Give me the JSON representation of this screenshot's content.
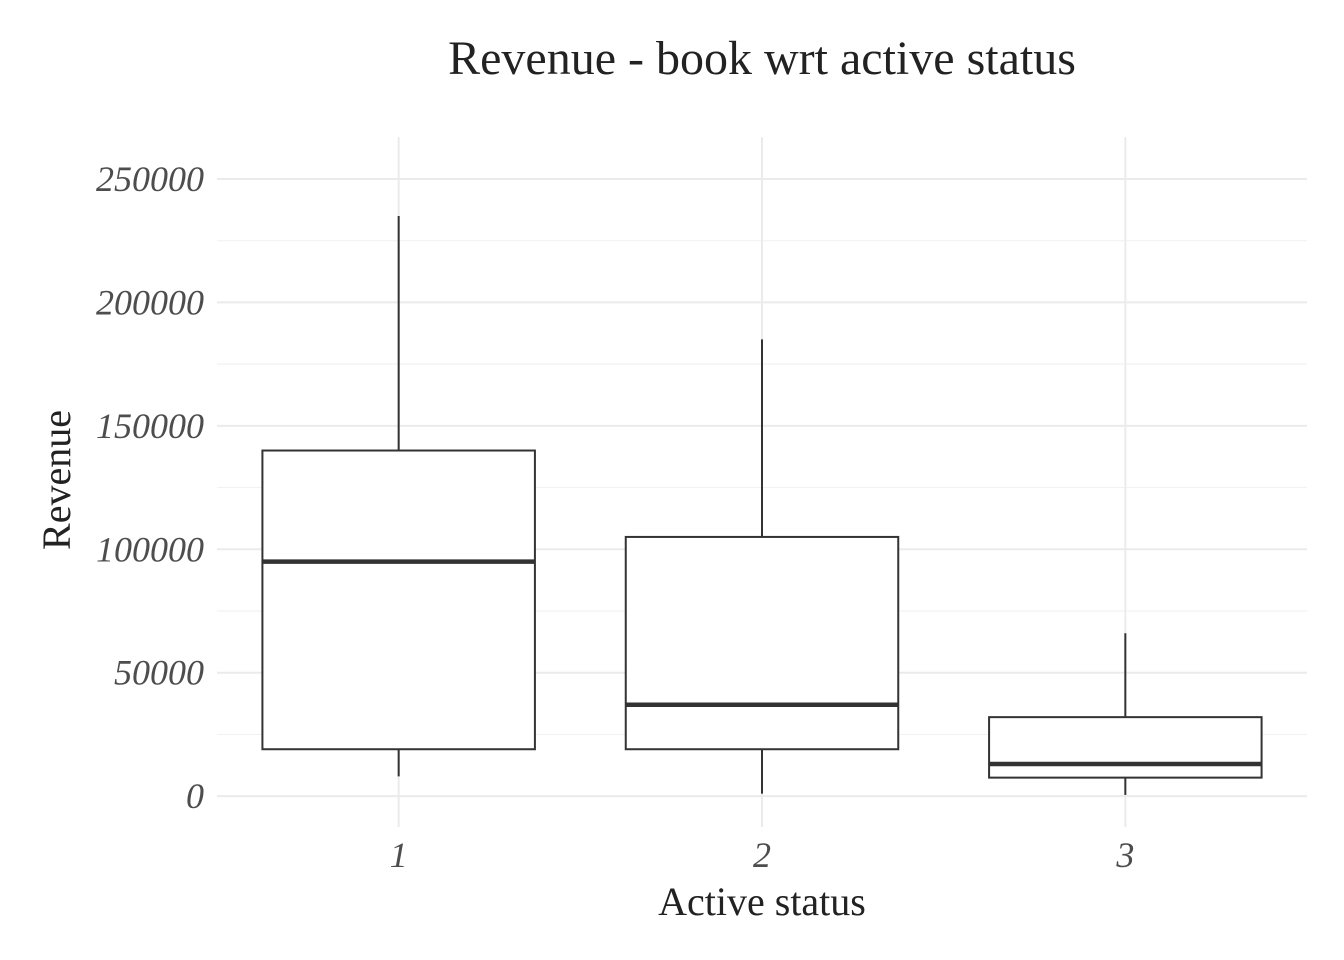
{
  "chart_data": {
    "type": "boxplot",
    "title": "Revenue - book wrt active status",
    "xlabel": "Active status",
    "ylabel": "Revenue",
    "categories": [
      "1",
      "2",
      "3"
    ],
    "ylim": [
      -12500,
      267000
    ],
    "y_ticks": [
      0,
      50000,
      100000,
      150000,
      200000,
      250000
    ],
    "y_tick_labels": [
      "0",
      "50000",
      "100000",
      "150000",
      "200000",
      "250000"
    ],
    "y_minor_ticks": [
      25000,
      75000,
      125000,
      175000,
      225000
    ],
    "grid": true,
    "boxes": [
      {
        "category": "1",
        "whisker_low": 8000,
        "q1": 19000,
        "median": 95000,
        "q3": 140000,
        "whisker_high": 235000
      },
      {
        "category": "2",
        "whisker_low": 1000,
        "q1": 19000,
        "median": 37000,
        "q3": 105000,
        "whisker_high": 185000
      },
      {
        "category": "3",
        "whisker_low": 500,
        "q1": 7500,
        "median": 13000,
        "q3": 32000,
        "whisker_high": 66000
      }
    ]
  }
}
